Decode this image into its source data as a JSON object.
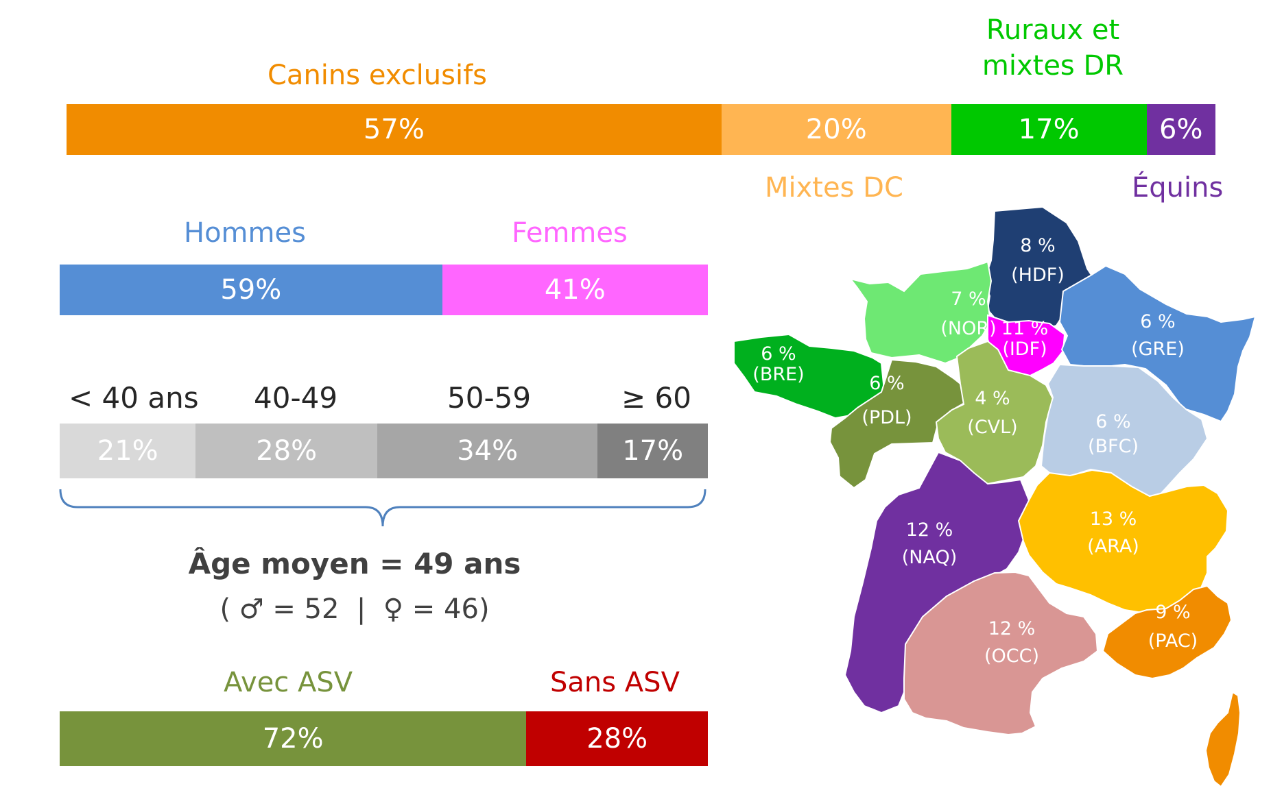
{
  "chart_data": [
    {
      "type": "bar",
      "orientation": "horizontal-stacked-100",
      "series": [
        {
          "name": "Canins exclusifs",
          "value": 57,
          "label": "57%",
          "color": "#F18C00"
        },
        {
          "name": "Mixtes DC",
          "value": 20,
          "label": "20%",
          "color": "#FFB552"
        },
        {
          "name": "Ruraux et mixtes DR",
          "value": 17,
          "label": "17%",
          "color": "#00C800"
        },
        {
          "name": "Équins",
          "value": 6,
          "label": "6%",
          "color": "#7030A0"
        }
      ]
    },
    {
      "type": "bar",
      "orientation": "horizontal-stacked-100",
      "series": [
        {
          "name": "Hommes",
          "value": 59,
          "label": "59%",
          "color": "#558ED5"
        },
        {
          "name": "Femmes",
          "value": 41,
          "label": "41%",
          "color": "#FF66FF"
        }
      ]
    },
    {
      "type": "bar",
      "orientation": "horizontal-stacked-100",
      "series": [
        {
          "name": "< 40 ans",
          "value": 21,
          "label": "21%",
          "color": "#D9D9D9"
        },
        {
          "name": "40-49",
          "value": 28,
          "label": "28%",
          "color": "#BFBFBF"
        },
        {
          "name": "50-59",
          "value": 34,
          "label": "34%",
          "color": "#A6A6A6"
        },
        {
          "name": "≥ 60",
          "value": 17,
          "label": "17%",
          "color": "#808080"
        }
      ],
      "summary": {
        "mean": "Âge moyen = 49 ans",
        "detail": "( ♂ = 52  |  ♀ = 46)"
      }
    },
    {
      "type": "bar",
      "orientation": "horizontal-stacked-100",
      "series": [
        {
          "name": "Avec ASV",
          "value": 72,
          "label": "72%",
          "color": "#77933C"
        },
        {
          "name": "Sans ASV",
          "value": 28,
          "label": "28%",
          "color": "#C00000"
        }
      ]
    },
    {
      "type": "map",
      "regions": [
        {
          "code": "HDF",
          "value": 8,
          "pct": "8 %",
          "name": "(HDF)",
          "color": "#1F3F73"
        },
        {
          "code": "NOR",
          "value": 7,
          "pct": "7 %",
          "name": "(NOR)",
          "color": "#6EE873"
        },
        {
          "code": "IDF",
          "value": 11,
          "pct": "11 %",
          "name": "(IDF)",
          "color": "#FF00FF"
        },
        {
          "code": "GRE",
          "value": 6,
          "pct": "6 %",
          "name": "(GRE)",
          "color": "#558ED5"
        },
        {
          "code": "BRE",
          "value": 6,
          "pct": "6 %",
          "name": "(BRE)",
          "color": "#00B01E"
        },
        {
          "code": "PDL",
          "value": 6,
          "pct": "6 %",
          "name": "(PDL)",
          "color": "#77933C"
        },
        {
          "code": "CVL",
          "value": 4,
          "pct": "4 %",
          "name": "(CVL)",
          "color": "#9BBB59"
        },
        {
          "code": "BFC",
          "value": 6,
          "pct": "6 %",
          "name": "(BFC)",
          "color": "#B9CDE5"
        },
        {
          "code": "NAQ",
          "value": 12,
          "pct": "12 %",
          "name": "(NAQ)",
          "color": "#7030A0"
        },
        {
          "code": "ARA",
          "value": 13,
          "pct": "13 %",
          "name": "(ARA)",
          "color": "#FFC000"
        },
        {
          "code": "OCC",
          "value": 12,
          "pct": "12 %",
          "name": "(OCC)",
          "color": "#D99694"
        },
        {
          "code": "PAC",
          "value": 9,
          "pct": "9 %",
          "name": "(PAC)",
          "color": "#F18C00"
        }
      ],
      "extra_region_color": "#F18C00"
    }
  ]
}
